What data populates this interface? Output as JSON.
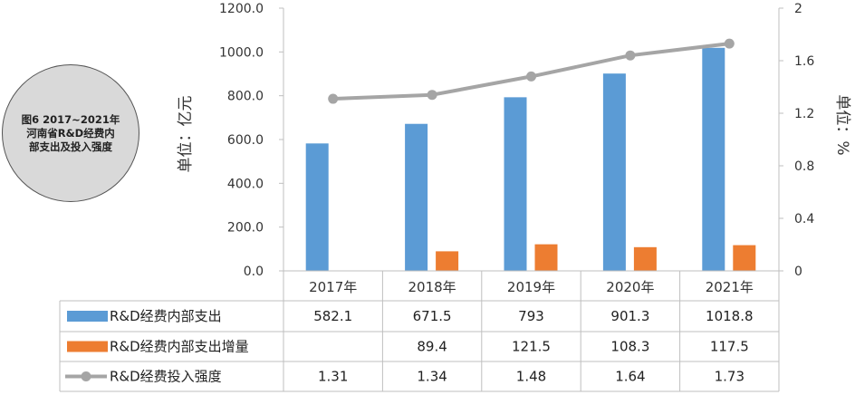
{
  "badge": {
    "lines": [
      "图6 2017~2021年",
      "河南省R&D经费内",
      "部支出及投入强度"
    ]
  },
  "chart_data": {
    "type": "bar",
    "categories": [
      "2017年",
      "2018年",
      "2019年",
      "2020年",
      "2021年"
    ],
    "series": [
      {
        "name": "R&D经费内部支出",
        "kind": "bar",
        "axis": "left",
        "color": "#5b9bd5",
        "values": [
          582.1,
          671.5,
          793,
          901.3,
          1018.8
        ],
        "table": [
          "582.1",
          "671.5",
          "793",
          "901.3",
          "1018.8"
        ]
      },
      {
        "name": "R&D经费内部支出增量",
        "kind": "bar",
        "axis": "left",
        "color": "#ed7d31",
        "values": [
          null,
          89.4,
          121.5,
          108.3,
          117.5
        ],
        "table": [
          "",
          "89.4",
          "121.5",
          "108.3",
          "117.5"
        ]
      },
      {
        "name": "R&D经费投入强度",
        "kind": "line",
        "axis": "right",
        "color": "#a5a5a5",
        "values": [
          1.31,
          1.34,
          1.48,
          1.64,
          1.73
        ],
        "table": [
          "1.31",
          "1.34",
          "1.48",
          "1.64",
          "1.73"
        ]
      }
    ],
    "ylabel_left": "单位：亿元",
    "ylabel_right": "单位：%",
    "ylim_left": [
      0,
      1200
    ],
    "ylim_right": [
      0,
      2
    ],
    "yticks_left": [
      "0.0",
      "200.0",
      "400.0",
      "600.0",
      "800.0",
      "1000.0",
      "1200.0"
    ],
    "yticks_right": [
      "0",
      "0.4",
      "0.8",
      "1.2",
      "1.6",
      "2"
    ],
    "grid": false,
    "legend": "data-table"
  }
}
